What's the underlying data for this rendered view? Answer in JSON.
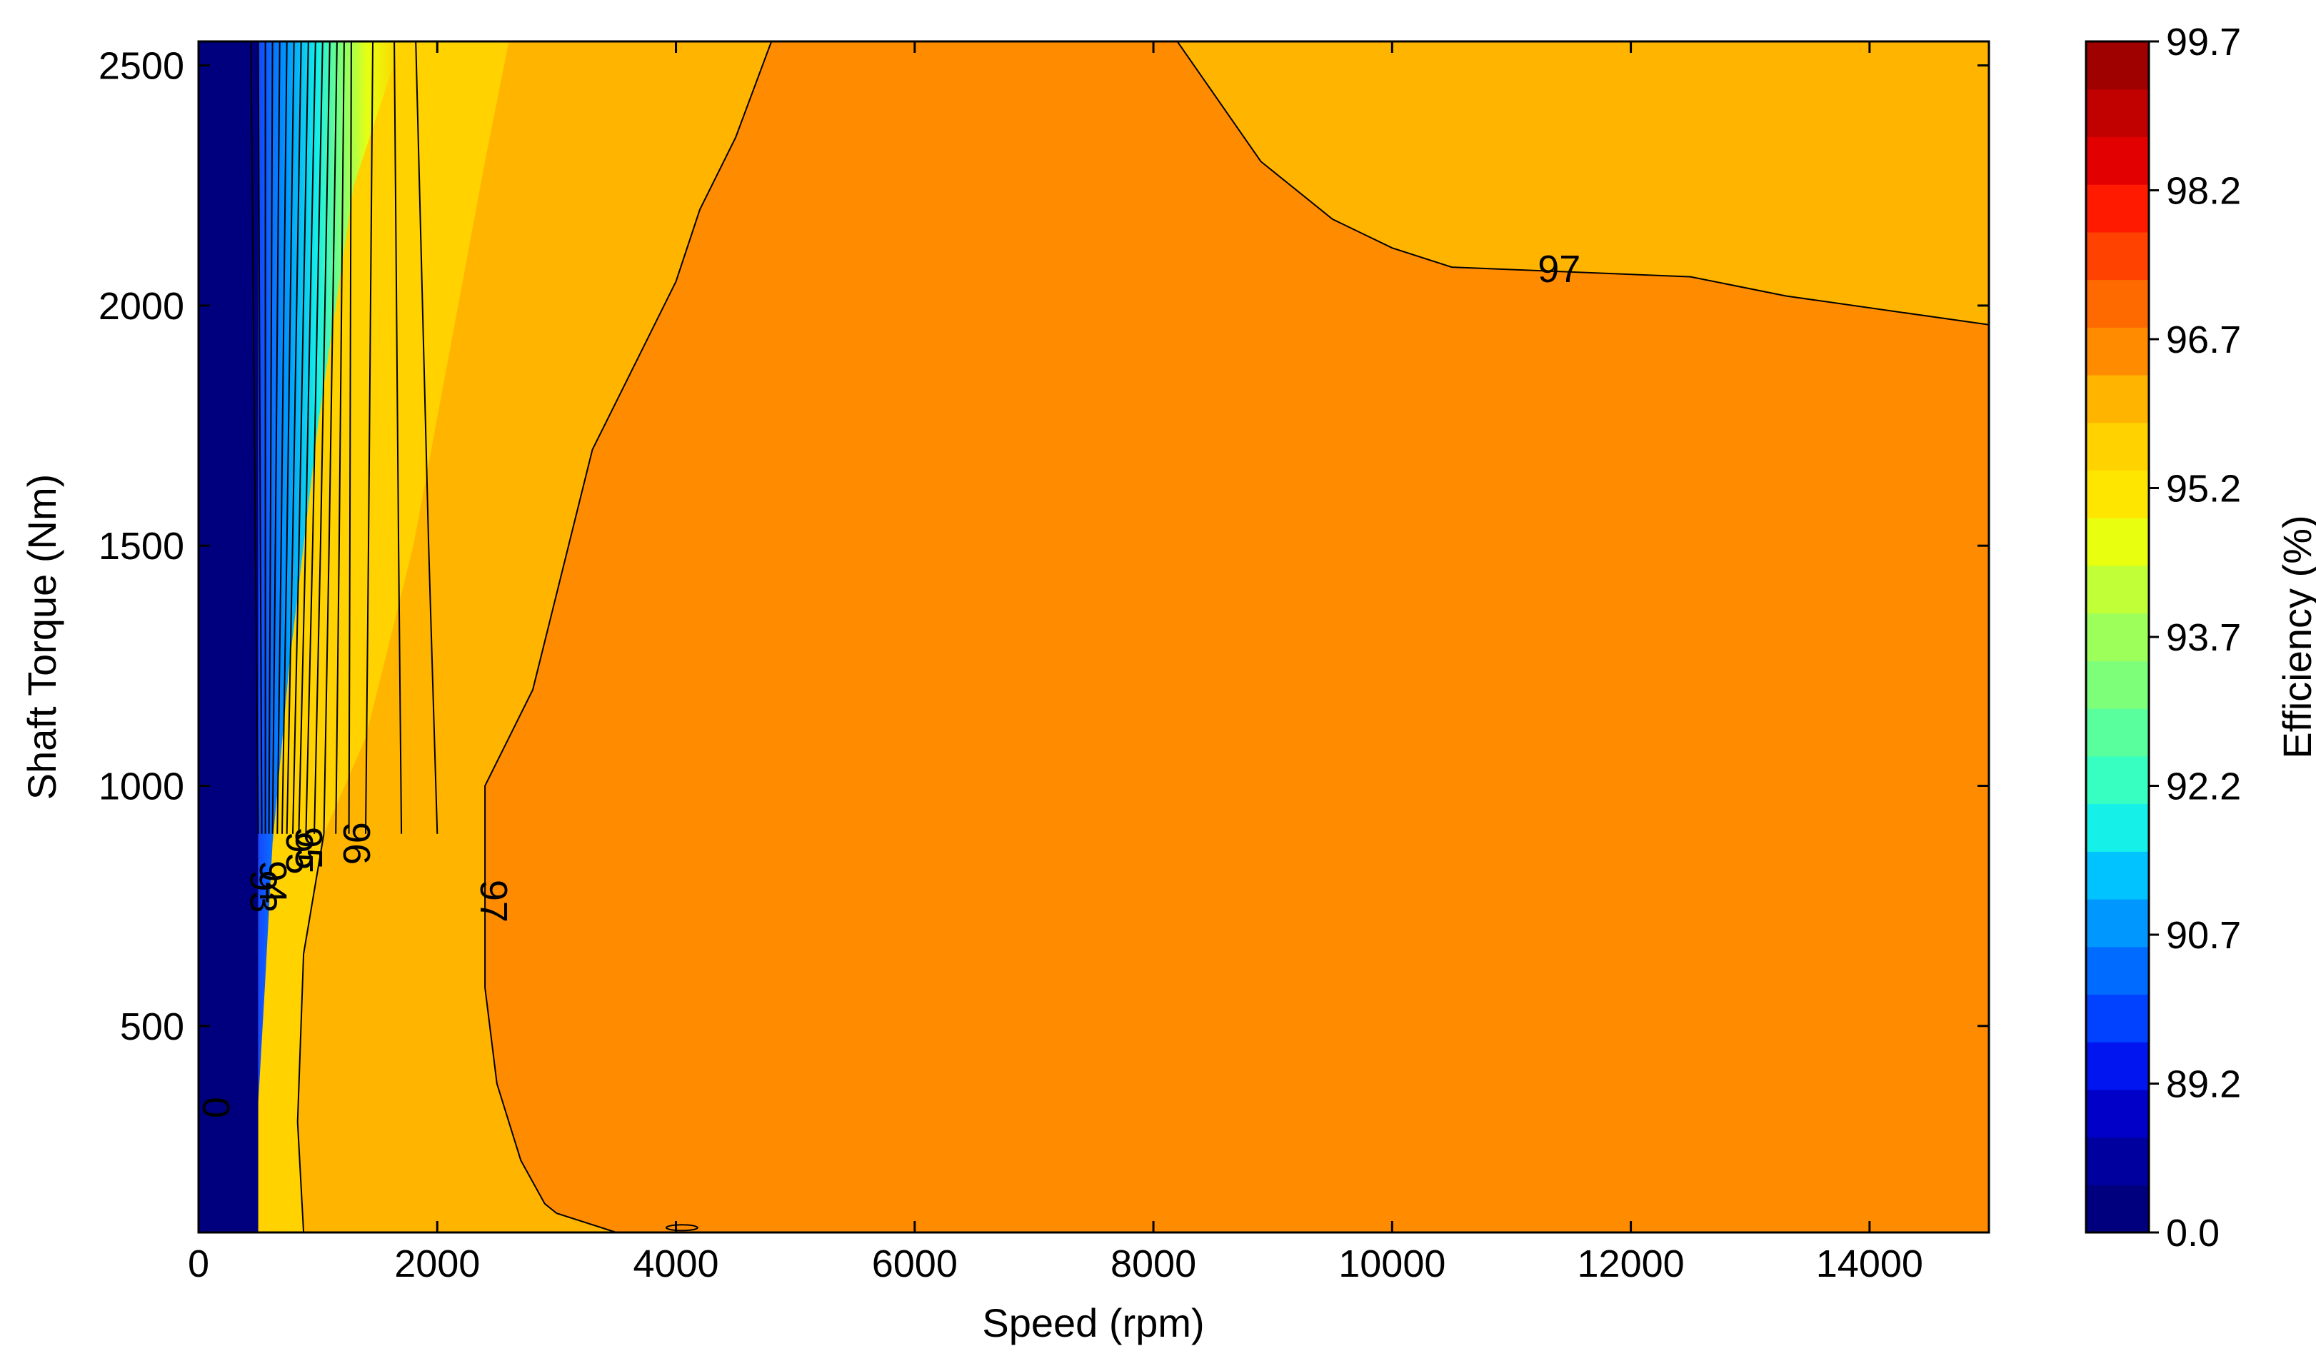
{
  "chart_data": {
    "type": "contour",
    "xlabel": "Speed  (rpm)",
    "ylabel": "Shaft Torque  (Nm)",
    "xlim": [
      0,
      15000
    ],
    "ylim": [
      70,
      2550
    ],
    "x_ticks": [
      "0",
      "2000",
      "4000",
      "6000",
      "8000",
      "10000",
      "12000",
      "14000"
    ],
    "x_tick_values": [
      0,
      2000,
      4000,
      6000,
      8000,
      10000,
      12000,
      14000
    ],
    "y_ticks": [
      "500",
      "1000",
      "1500",
      "2000",
      "2500"
    ],
    "y_tick_values": [
      500,
      1000,
      1500,
      2000,
      2500
    ],
    "colorbar": {
      "label": "Efficiency (%)",
      "range": [
        0.0,
        99.7
      ],
      "tick_labels": [
        "0.0",
        "89.2",
        "90.7",
        "92.2",
        "93.7",
        "95.2",
        "96.7",
        "98.2",
        "99.7"
      ],
      "bands": [
        "#00007f",
        "#00009f",
        "#0000c8",
        "#0015f0",
        "#0042ff",
        "#006cff",
        "#0098ff",
        "#00c3ff",
        "#15f0e8",
        "#36ffc1",
        "#5aff9d",
        "#7dff7a",
        "#9dff5a",
        "#c1ff36",
        "#e8ff0f",
        "#ffe600",
        "#ffd200",
        "#ffb500",
        "#ff8c00",
        "#ff6a00",
        "#ff4200",
        "#ff1a00",
        "#e30000",
        "#c10000",
        "#9f0000"
      ]
    },
    "regions": [
      {
        "efficiency_band": "0.0",
        "speed_range": [
          0,
          500
        ],
        "torque_range": [
          70,
          2550
        ]
      },
      {
        "efficiency_band": "96.7",
        "description_level": 96.7
      },
      {
        "efficiency_band": "97",
        "description_level": 97
      }
    ],
    "contour_labels": [
      {
        "text": "97",
        "speed": 11400,
        "torque": 2070
      },
      {
        "text": "97",
        "speed": 2450,
        "torque": 760
      },
      {
        "text": "96",
        "speed": 1300,
        "torque": 880
      },
      {
        "text": "95",
        "speed": 900,
        "torque": 870
      },
      {
        "text": "95",
        "speed": 820,
        "torque": 860
      },
      {
        "text": "94",
        "speed": 600,
        "torque": 800
      },
      {
        "text": "93",
        "speed": 520,
        "torque": 780
      },
      {
        "text": "0",
        "speed": 120,
        "torque": 330
      }
    ],
    "contour_97_upper": [
      [
        4800,
        2550
      ],
      [
        8200,
        2550
      ],
      [
        8900,
        2300
      ],
      [
        9500,
        2180
      ],
      [
        10000,
        2120
      ],
      [
        10500,
        2080
      ],
      [
        12500,
        2060
      ],
      [
        13300,
        2020
      ],
      [
        15000,
        1960
      ]
    ],
    "contour_97_lower": [
      [
        3500,
        70
      ],
      [
        3000,
        110
      ],
      [
        2900,
        130
      ],
      [
        2700,
        220
      ],
      [
        2500,
        380
      ],
      [
        2400,
        580
      ],
      [
        2400,
        1000
      ],
      [
        2800,
        1200
      ],
      [
        3000,
        1400
      ],
      [
        3100,
        1500
      ],
      [
        3300,
        1700
      ],
      [
        3600,
        1850
      ],
      [
        4000,
        2050
      ],
      [
        4200,
        2200
      ],
      [
        4500,
        2350
      ],
      [
        4800,
        2550
      ]
    ]
  }
}
